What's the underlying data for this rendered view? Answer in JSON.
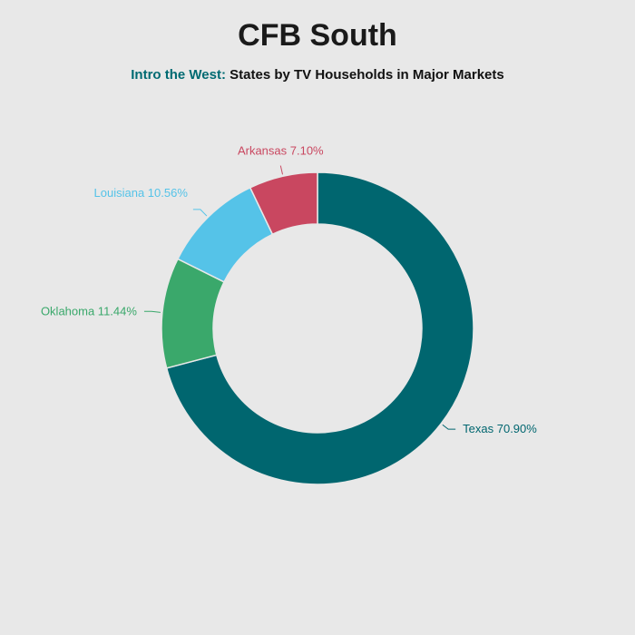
{
  "chart_data": {
    "type": "pie",
    "variant": "donut",
    "title": "CFB South",
    "subtitle_prefix": "Intro the West:",
    "subtitle_text": "States by TV Households in Major Markets",
    "slices": [
      {
        "label": "Texas",
        "value": 70.9,
        "display": "Texas 70.90%",
        "color": "#00666f"
      },
      {
        "label": "Oklahoma",
        "value": 11.44,
        "display": "Oklahoma 11.44%",
        "color": "#3aa86b"
      },
      {
        "label": "Louisiana",
        "value": 10.56,
        "display": "Louisiana 10.56%",
        "color": "#55c3e8"
      },
      {
        "label": "Arkansas",
        "value": 7.1,
        "display": "Arkansas 7.10%",
        "color": "#c94760"
      }
    ],
    "start": "top, clockwise",
    "legend": "none"
  },
  "colors": {
    "background": "#e8e8e8",
    "subtitle_accent": "#006a72"
  }
}
